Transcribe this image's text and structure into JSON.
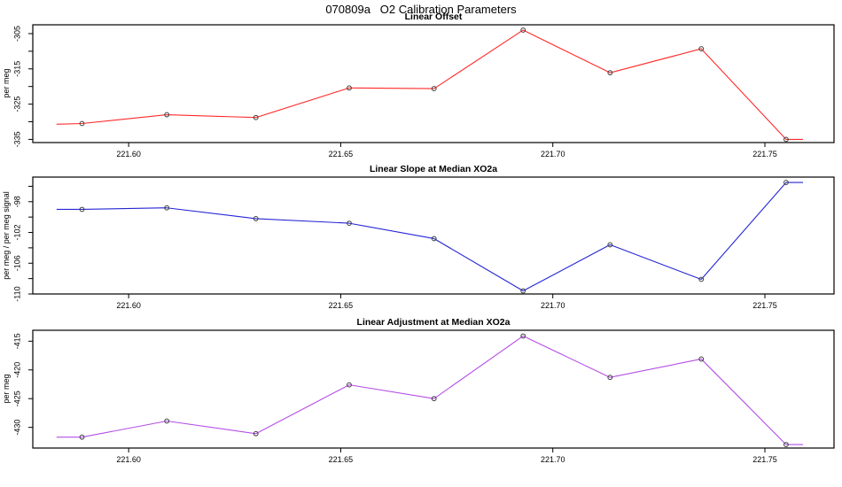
{
  "page_title": "070809a   O2 Calibration Parameters",
  "chart_data": [
    {
      "type": "line",
      "title": "Linear Offset",
      "ylabel": "per meg",
      "line_color": "#ff2a2a",
      "marker": "open-circle",
      "marker_color": "#3d3d3d",
      "ends_unmarked": true,
      "x": [
        221.583,
        221.589,
        221.609,
        221.63,
        221.652,
        221.672,
        221.693,
        221.7135,
        221.735,
        221.755,
        221.759
      ],
      "values": [
        -330.7,
        -330.5,
        -328.0,
        -328.8,
        -320.4,
        -320.6,
        -304.0,
        -316.1,
        -309.3,
        -335.0,
        -335.0
      ],
      "xlim": [
        221.5774,
        221.7663
      ],
      "ylim": [
        -335.9,
        -302.5
      ],
      "xticks": [
        "221.60",
        "221.65",
        "221.70",
        "221.75"
      ],
      "yticks_major": [
        -305,
        -315,
        -325,
        -335
      ],
      "yticks_minor": [
        -310,
        -320,
        -330
      ],
      "grid": false,
      "legend": "none"
    },
    {
      "type": "line",
      "title": "Linear Slope at Median XO2a",
      "ylabel": "per meg / per meg signal",
      "line_color": "#2525d6",
      "marker": "open-circle",
      "marker_color": "#3d3d3d",
      "ends_unmarked": true,
      "x": [
        221.583,
        221.589,
        221.609,
        221.63,
        221.652,
        221.672,
        221.693,
        221.7135,
        221.735,
        221.755,
        221.759
      ],
      "values": [
        -99.0,
        -99.0,
        -98.8,
        -100.2,
        -100.8,
        -102.8,
        -109.6,
        -103.6,
        -108.1,
        -95.5,
        -95.5
      ],
      "xlim": [
        221.5774,
        221.7663
      ],
      "ylim": [
        -110.0,
        -94.8
      ],
      "xticks": [
        "221.60",
        "221.65",
        "221.70",
        "221.75"
      ],
      "yticks_major": [
        -98,
        -102,
        -106,
        -110
      ],
      "yticks_minor": [
        -96,
        -100,
        -104,
        -108
      ],
      "grid": false,
      "legend": "none"
    },
    {
      "type": "line",
      "title": "Linear Adjustment at Median XO2a",
      "ylabel": "per meg",
      "line_color": "#b44fe6",
      "marker": "open-circle",
      "marker_color": "#3d3d3d",
      "ends_unmarked": true,
      "x": [
        221.583,
        221.589,
        221.609,
        221.63,
        221.652,
        221.672,
        221.693,
        221.7135,
        221.735,
        221.755,
        221.759
      ],
      "values": [
        -431.7,
        -431.7,
        -428.9,
        -431.1,
        -422.6,
        -425.0,
        -414.1,
        -421.3,
        -418.1,
        -433.0,
        -433.0
      ],
      "xlim": [
        221.5774,
        221.7663
      ],
      "ylim": [
        -433.6,
        -413.1
      ],
      "xticks": [
        "221.60",
        "221.65",
        "221.70",
        "221.75"
      ],
      "yticks_major": [
        -415,
        -420,
        -425,
        -430
      ],
      "yticks_minor": [],
      "grid": false,
      "legend": "none"
    }
  ]
}
